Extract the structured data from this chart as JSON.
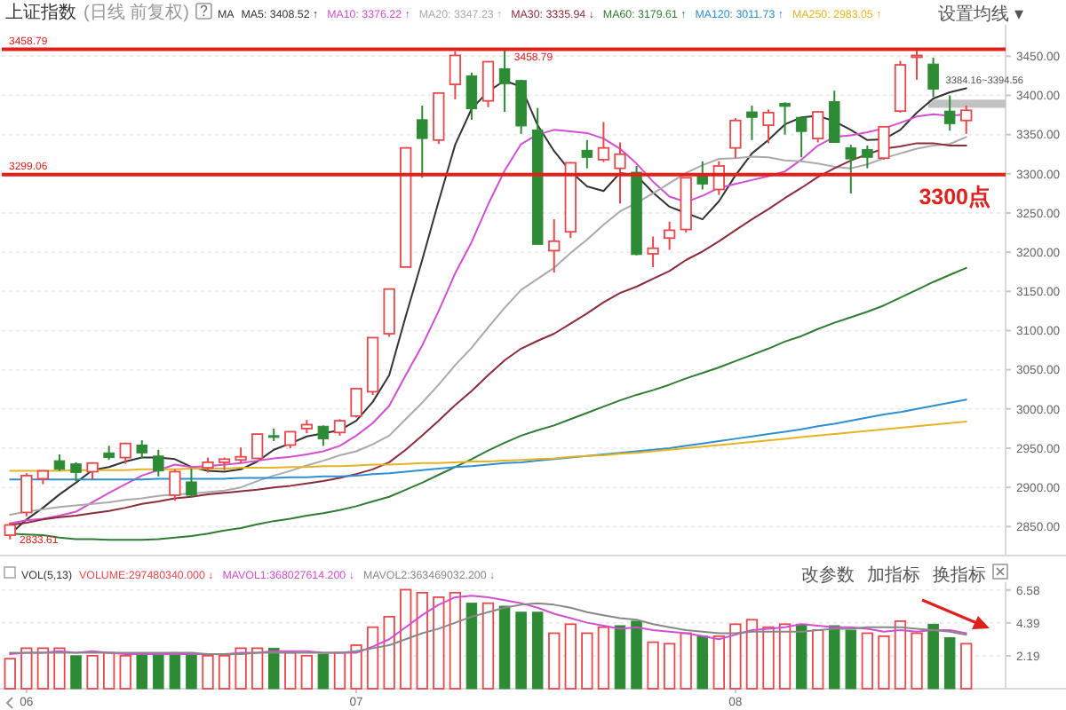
{
  "chart_data": [
    {
      "type": "candlestick",
      "title": "上证指数",
      "subtitle": "(日线 前复权)",
      "legend_title": "MA",
      "legend": "top left",
      "categories": [
        null,
        "06",
        null,
        null,
        null,
        null,
        null,
        null,
        null,
        null,
        null,
        null,
        null,
        null,
        null,
        null,
        null,
        null,
        null,
        null,
        null,
        "07",
        null,
        null,
        null,
        null,
        null,
        null,
        null,
        null,
        null,
        null,
        null,
        null,
        null,
        null,
        null,
        null,
        null,
        null,
        null,
        null,
        null,
        null,
        "08",
        null,
        null,
        null,
        null,
        null,
        null,
        null,
        null,
        null,
        null,
        null,
        null,
        null,
        null
      ],
      "ohlc": [
        [
          2839,
          2855,
          2833.61,
          2852
        ],
        [
          2868,
          2918,
          2863,
          2915
        ],
        [
          2911,
          2922,
          2904,
          2921
        ],
        [
          2934,
          2942,
          2921,
          2923
        ],
        [
          2930,
          2932,
          2908,
          2919
        ],
        [
          2920,
          2932,
          2910,
          2931
        ],
        [
          2944,
          2953,
          2935,
          2938
        ],
        [
          2938,
          2957,
          2930,
          2956
        ],
        [
          2954,
          2960,
          2937,
          2944
        ],
        [
          2940,
          2948,
          2914,
          2921
        ],
        [
          2890,
          2923,
          2883,
          2920
        ],
        [
          2907,
          2924,
          2887,
          2890
        ],
        [
          2925,
          2938,
          2919,
          2932
        ],
        [
          2932,
          2938,
          2922,
          2936
        ],
        [
          2935,
          2951,
          2931,
          2939
        ],
        [
          2937,
          2968,
          2936,
          2968
        ],
        [
          2966,
          2975,
          2959,
          2965
        ],
        [
          2954,
          2971,
          2950,
          2971
        ],
        [
          2975,
          2986,
          2969,
          2980
        ],
        [
          2978,
          2979,
          2953,
          2962
        ],
        [
          2970,
          2987,
          2966,
          2985
        ],
        [
          2991,
          3026,
          2989,
          3026
        ],
        [
          3022,
          3091,
          3018,
          3091
        ],
        [
          3096,
          3153,
          3092,
          3153
        ],
        [
          3181,
          3334,
          3181,
          3333
        ],
        [
          3369,
          3387,
          3295,
          3345
        ],
        [
          3343,
          3404,
          3338,
          3403
        ],
        [
          3414,
          3456,
          3395,
          3451
        ],
        [
          3425,
          3429,
          3369,
          3383
        ],
        [
          3393,
          3443,
          3385,
          3443
        ],
        [
          3434,
          3458.79,
          3379,
          3415
        ],
        [
          3419,
          3420,
          3351,
          3361
        ],
        [
          3356,
          3384,
          3210,
          3210
        ],
        [
          3202,
          3242,
          3174,
          3214
        ],
        [
          3226,
          3315,
          3218,
          3314
        ],
        [
          3330,
          3343,
          3307,
          3321
        ],
        [
          3318,
          3366,
          3315,
          3333
        ],
        [
          3307,
          3340,
          3262,
          3325
        ],
        [
          3302,
          3310,
          3196,
          3197
        ],
        [
          3198,
          3220,
          3181,
          3205
        ],
        [
          3218,
          3239,
          3203,
          3228
        ],
        [
          3229,
          3295,
          3225,
          3295
        ],
        [
          3297,
          3316,
          3280,
          3287
        ],
        [
          3280,
          3316,
          3273,
          3310
        ],
        [
          3333,
          3371,
          3320,
          3368
        ],
        [
          3379,
          3387,
          3343,
          3372
        ],
        [
          3362,
          3382,
          3339,
          3378
        ],
        [
          3390,
          3391,
          3350,
          3386
        ],
        [
          3372,
          3372,
          3321,
          3354
        ],
        [
          3345,
          3380,
          3340,
          3379
        ],
        [
          3392,
          3406,
          3340,
          3340
        ],
        [
          3333,
          3337,
          3275,
          3319
        ],
        [
          3331,
          3336,
          3307,
          3321
        ],
        [
          3320,
          3361,
          3318,
          3360
        ],
        [
          3380,
          3444,
          3378,
          3439
        ],
        [
          3449,
          3457,
          3420,
          3451
        ],
        [
          3440,
          3448,
          3398,
          3408
        ],
        [
          3380,
          3400,
          3355,
          3364
        ],
        [
          3368,
          3387,
          3351,
          3381
        ]
      ],
      "colors": [
        "#e8474c",
        "#e8474c",
        "#e8474c",
        "#2e8b35",
        "#2e8b35",
        "#e8474c",
        "#2e8b35",
        "#e8474c",
        "#2e8b35",
        "#2e8b35",
        "#e8474c",
        "#2e8b35",
        "#e8474c",
        "#e8474c",
        "#e8474c",
        "#e8474c",
        "#2e8b35",
        "#e8474c",
        "#e8474c",
        "#2e8b35",
        "#e8474c",
        "#e8474c",
        "#e8474c",
        "#e8474c",
        "#e8474c",
        "#2e8b35",
        "#e8474c",
        "#e8474c",
        "#2e8b35",
        "#e8474c",
        "#2e8b35",
        "#2e8b35",
        "#2e8b35",
        "#e8474c",
        "#e8474c",
        "#2e8b35",
        "#e8474c",
        "#e8474c",
        "#2e8b35",
        "#e8474c",
        "#e8474c",
        "#e8474c",
        "#2e8b35",
        "#e8474c",
        "#e8474c",
        "#2e8b35",
        "#e8474c",
        "#2e8b35",
        "#2e8b35",
        "#e8474c",
        "#2e8b35",
        "#2e8b35",
        "#2e8b35",
        "#e8474c",
        "#e8474c",
        "#e8474c",
        "#2e8b35",
        "#2e8b35",
        "#e8474c"
      ],
      "series": [
        {
          "name": "MA5: 3408.52 ↑",
          "type": "line",
          "color": "#333333",
          "values": [
            2840,
            2859,
            2874,
            2891,
            2906,
            2922,
            2926,
            2933,
            2938,
            2938,
            2936,
            2926,
            2921,
            2920,
            2923,
            2933,
            2948,
            2956,
            2965,
            2969,
            2973,
            2985,
            3009,
            3043,
            3118,
            3190,
            3265,
            3337,
            3383,
            3405,
            3419,
            3411,
            3362,
            3329,
            3303,
            3284,
            3278,
            3301,
            3298,
            3276,
            3258,
            3250,
            3242,
            3265,
            3298,
            3326,
            3343,
            3363,
            3372,
            3374,
            3367,
            3356,
            3343,
            3344,
            3356,
            3378,
            3396,
            3404,
            3409
          ]
        },
        {
          "name": "MA10: 3376.22 ↑",
          "type": "line",
          "color": "#d24fd2",
          "values": [
            2854,
            2858,
            2860,
            2864,
            2869,
            2881,
            2893,
            2904,
            2915,
            2922,
            2929,
            2926,
            2927,
            2929,
            2931,
            2934,
            2937,
            2939,
            2942,
            2946,
            2953,
            2966,
            2982,
            3004,
            3043,
            3081,
            3125,
            3173,
            3213,
            3261,
            3304,
            3338,
            3350,
            3356,
            3354,
            3352,
            3345,
            3332,
            3313,
            3290,
            3271,
            3264,
            3272,
            3282,
            3287,
            3292,
            3297,
            3303,
            3318,
            3336,
            3347,
            3349,
            3353,
            3358,
            3365,
            3373,
            3376,
            3374,
            3376
          ]
        },
        {
          "name": "MA20: 3347.23 ↑",
          "type": "line",
          "color": "#aaaaaa",
          "values": [
            2865,
            2869,
            2872,
            2875,
            2877,
            2879,
            2881,
            2884,
            2886,
            2889,
            2891,
            2892,
            2894,
            2896,
            2900,
            2908,
            2915,
            2921,
            2928,
            2934,
            2941,
            2946,
            2955,
            2966,
            2987,
            3008,
            3031,
            3056,
            3078,
            3104,
            3129,
            3152,
            3166,
            3180,
            3199,
            3216,
            3235,
            3252,
            3263,
            3275,
            3288,
            3301,
            3311,
            3319,
            3320,
            3322,
            3321,
            3317,
            3316,
            3313,
            3309,
            3307,
            3312,
            3320,
            3326,
            3332,
            3336,
            3338,
            3347
          ]
        },
        {
          "name": "MA30: 3335.94 ↓",
          "type": "line",
          "color": "#8c2b3a",
          "values": [
            2852,
            2855,
            2859,
            2862,
            2864,
            2867,
            2870,
            2874,
            2879,
            2882,
            2886,
            2888,
            2891,
            2893,
            2895,
            2897,
            2900,
            2902,
            2905,
            2908,
            2912,
            2917,
            2923,
            2932,
            2948,
            2966,
            2985,
            3005,
            3023,
            3043,
            3062,
            3077,
            3087,
            3096,
            3109,
            3122,
            3136,
            3148,
            3156,
            3166,
            3176,
            3190,
            3201,
            3214,
            3228,
            3242,
            3255,
            3269,
            3282,
            3296,
            3307,
            3317,
            3325,
            3332,
            3335,
            3339,
            3339,
            3336,
            3336
          ]
        },
        {
          "name": "MA60: 3179.61 ↑",
          "type": "line",
          "color": "#2f7d32",
          "values": [
            2841,
            2840,
            2839,
            2836,
            2834,
            2834,
            2833,
            2833,
            2833,
            2834,
            2836,
            2838,
            2841,
            2845,
            2848,
            2853,
            2857,
            2860,
            2864,
            2867,
            2871,
            2876,
            2882,
            2888,
            2897,
            2906,
            2916,
            2926,
            2936,
            2947,
            2957,
            2966,
            2973,
            2979,
            2987,
            2995,
            3003,
            3011,
            3018,
            3024,
            3031,
            3039,
            3046,
            3053,
            3061,
            3069,
            3077,
            3086,
            3093,
            3102,
            3110,
            3117,
            3124,
            3132,
            3142,
            3152,
            3162,
            3171,
            3180
          ]
        },
        {
          "name": "MA120: 3011.73 ↑",
          "type": "line",
          "color": "#2f8fd0",
          "values": [
            2910,
            2910,
            2910,
            2910,
            2910,
            2910,
            2910,
            2910,
            2910,
            2911,
            2911,
            2911,
            2911,
            2911,
            2912,
            2912,
            2912,
            2913,
            2913,
            2914,
            2914,
            2915,
            2917,
            2918,
            2920,
            2922,
            2924,
            2926,
            2927,
            2929,
            2931,
            2932,
            2934,
            2936,
            2938,
            2940,
            2942,
            2944,
            2946,
            2948,
            2950,
            2953,
            2956,
            2959,
            2962,
            2965,
            2968,
            2971,
            2974,
            2978,
            2981,
            2985,
            2989,
            2993,
            2996,
            3000,
            3004,
            3008,
            3012
          ]
        },
        {
          "name": "MA250: 2983.05 ↑",
          "type": "line",
          "color": "#e6b422",
          "values": [
            2921,
            2921,
            2921,
            2921,
            2922,
            2922,
            2922,
            2922,
            2923,
            2923,
            2923,
            2924,
            2924,
            2924,
            2925,
            2925,
            2925,
            2926,
            2926,
            2927,
            2927,
            2928,
            2929,
            2929,
            2930,
            2931,
            2931,
            2932,
            2933,
            2933,
            2934,
            2935,
            2936,
            2937,
            2939,
            2940,
            2941,
            2943,
            2944,
            2946,
            2948,
            2950,
            2952,
            2954,
            2956,
            2958,
            2960,
            2962,
            2964,
            2966,
            2968,
            2970,
            2972,
            2974,
            2976,
            2978,
            2980,
            2982,
            2984
          ]
        }
      ],
      "ylim": [
        2813,
        3490
      ],
      "yticks": [
        {
          "value": 2850,
          "label": "2850.00"
        },
        {
          "value": 2900,
          "label": "2900.00"
        },
        {
          "value": 2950,
          "label": "2950.00"
        },
        {
          "value": 3000,
          "label": "3000.00"
        },
        {
          "value": 3050,
          "label": "3050.00"
        },
        {
          "value": 3100,
          "label": "3100.00"
        },
        {
          "value": 3150,
          "label": "3150.00"
        },
        {
          "value": 3200,
          "label": "3200.00"
        },
        {
          "value": 3250,
          "label": "3250.00"
        },
        {
          "value": 3300,
          "label": "3300.00"
        },
        {
          "value": 3350,
          "label": "3350.00"
        },
        {
          "value": 3400,
          "label": "3400.00"
        },
        {
          "value": 3450,
          "label": "3450.00"
        }
      ],
      "grid": "y",
      "tick_labels": "y",
      "ref_lines": [
        {
          "axis": "y",
          "value": 3458.79,
          "label": "3458.79",
          "color": "#e0201b"
        },
        {
          "axis": "y",
          "value": 3299.06,
          "label": "3299.06",
          "color": "#e0201b"
        }
      ],
      "bands": [
        {
          "axis": "y",
          "from": 3384.16,
          "to": 3394.56,
          "label": "3384.16~3394.56",
          "color": "#c2c2c2"
        }
      ],
      "annotations": [
        "设置均线 ▾",
        {
          "text": "3458.79",
          "y": 3458.79
        },
        {
          "text": "2833.61",
          "y": 2833.61
        },
        {
          "text": "3300点",
          "y": 3300
        }
      ]
    },
    {
      "type": "bar",
      "title": "VOL(5,13)",
      "legend": "top left",
      "categories": [
        null,
        "06",
        null,
        null,
        null,
        null,
        null,
        null,
        null,
        null,
        null,
        null,
        null,
        null,
        null,
        null,
        null,
        null,
        null,
        null,
        null,
        "07",
        null,
        null,
        null,
        null,
        null,
        null,
        null,
        null,
        null,
        null,
        null,
        null,
        null,
        null,
        null,
        null,
        null,
        null,
        null,
        null,
        null,
        null,
        "08",
        null,
        null,
        null,
        null,
        null,
        null,
        null,
        null,
        null,
        null,
        null,
        null,
        null,
        null
      ],
      "series": [
        {
          "name": "VOLUME:297480340.000 ↓",
          "type": "bar",
          "colors": [
            "#e8474c",
            "#e8474c",
            "#e8474c",
            "#e8474c",
            "#2e8b35",
            "#e8474c",
            "#e8474c",
            "#e8474c",
            "#2e8b35",
            "#2e8b35",
            "#2e8b35",
            "#2e8b35",
            "#e8474c",
            "#e8474c",
            "#e8474c",
            "#e8474c",
            "#2e8b35",
            "#e8474c",
            "#e8474c",
            "#2e8b35",
            "#e8474c",
            "#e8474c",
            "#e8474c",
            "#e8474c",
            "#e8474c",
            "#e8474c",
            "#e8474c",
            "#e8474c",
            "#2e8b35",
            "#e8474c",
            "#2e8b35",
            "#2e8b35",
            "#2e8b35",
            "#e8474c",
            "#e8474c",
            "#e8474c",
            "#e8474c",
            "#2e8b35",
            "#2e8b35",
            "#e8474c",
            "#e8474c",
            "#e8474c",
            "#2e8b35",
            "#e8474c",
            "#e8474c",
            "#e8474c",
            "#e8474c",
            "#e8474c",
            "#2e8b35",
            "#e8474c",
            "#2e8b35",
            "#2e8b35",
            "#e8474c",
            "#e8474c",
            "#e8474c",
            "#e8474c",
            "#2e8b35",
            "#2e8b35",
            "#e8474c"
          ],
          "values": [
            2.0,
            2.7,
            2.7,
            2.7,
            2.2,
            2.2,
            2.4,
            2.2,
            2.3,
            2.3,
            2.4,
            2.4,
            2.2,
            2.2,
            2.7,
            2.7,
            2.7,
            2.4,
            2.2,
            2.3,
            2.4,
            2.9,
            4.1,
            4.8,
            6.6,
            6.4,
            6.1,
            6.4,
            5.7,
            5.7,
            5.5,
            5.1,
            5.1,
            3.7,
            4.3,
            3.7,
            4.1,
            4.2,
            4.5,
            3.1,
            3.0,
            3.7,
            3.5,
            3.5,
            4.3,
            4.6,
            4.1,
            4.3,
            4.3,
            3.9,
            4.2,
            3.9,
            3.7,
            3.5,
            4.5,
            3.7,
            4.3,
            3.4,
            3.0
          ]
        },
        {
          "name": "MAVOL1:368027614.200 ↓",
          "type": "line",
          "color": "#d24fd2",
          "values": [
            2.3,
            2.4,
            2.4,
            2.5,
            2.4,
            2.5,
            2.4,
            2.3,
            2.3,
            2.3,
            2.3,
            2.3,
            2.3,
            2.3,
            2.4,
            2.4,
            2.5,
            2.5,
            2.5,
            2.4,
            2.4,
            2.4,
            2.8,
            3.3,
            4.1,
            4.9,
            5.6,
            6.1,
            6.2,
            6.1,
            5.9,
            5.7,
            5.4,
            5.0,
            4.7,
            4.4,
            4.2,
            4.0,
            4.1,
            3.9,
            3.8,
            3.7,
            3.5,
            3.3,
            3.6,
            3.9,
            4.0,
            4.1,
            4.3,
            4.2,
            4.1,
            4.1,
            4.0,
            3.8,
            3.9,
            3.8,
            3.9,
            3.9,
            3.7
          ]
        },
        {
          "name": "MAVOL2:363469032.200 ↓",
          "type": "line",
          "color": "#888888",
          "values": [
            2.4,
            2.4,
            2.4,
            2.4,
            2.4,
            2.4,
            2.4,
            2.4,
            2.4,
            2.4,
            2.4,
            2.4,
            2.3,
            2.3,
            2.3,
            2.4,
            2.4,
            2.4,
            2.4,
            2.4,
            2.4,
            2.5,
            2.7,
            2.9,
            3.3,
            3.7,
            4.0,
            4.4,
            4.8,
            5.1,
            5.4,
            5.6,
            5.7,
            5.6,
            5.4,
            5.1,
            4.9,
            4.7,
            4.6,
            4.3,
            4.1,
            3.9,
            3.8,
            3.7,
            3.7,
            3.8,
            3.8,
            3.8,
            3.8,
            3.9,
            4.0,
            4.0,
            4.1,
            4.1,
            4.1,
            4.0,
            3.9,
            3.8,
            3.6
          ]
        }
      ],
      "ylim": [
        0,
        7.1
      ],
      "yticks": [
        2.19,
        4.39,
        6.58
      ],
      "grid": "y",
      "annotations": [
        "改参数",
        "加指标",
        "换指标"
      ]
    }
  ]
}
